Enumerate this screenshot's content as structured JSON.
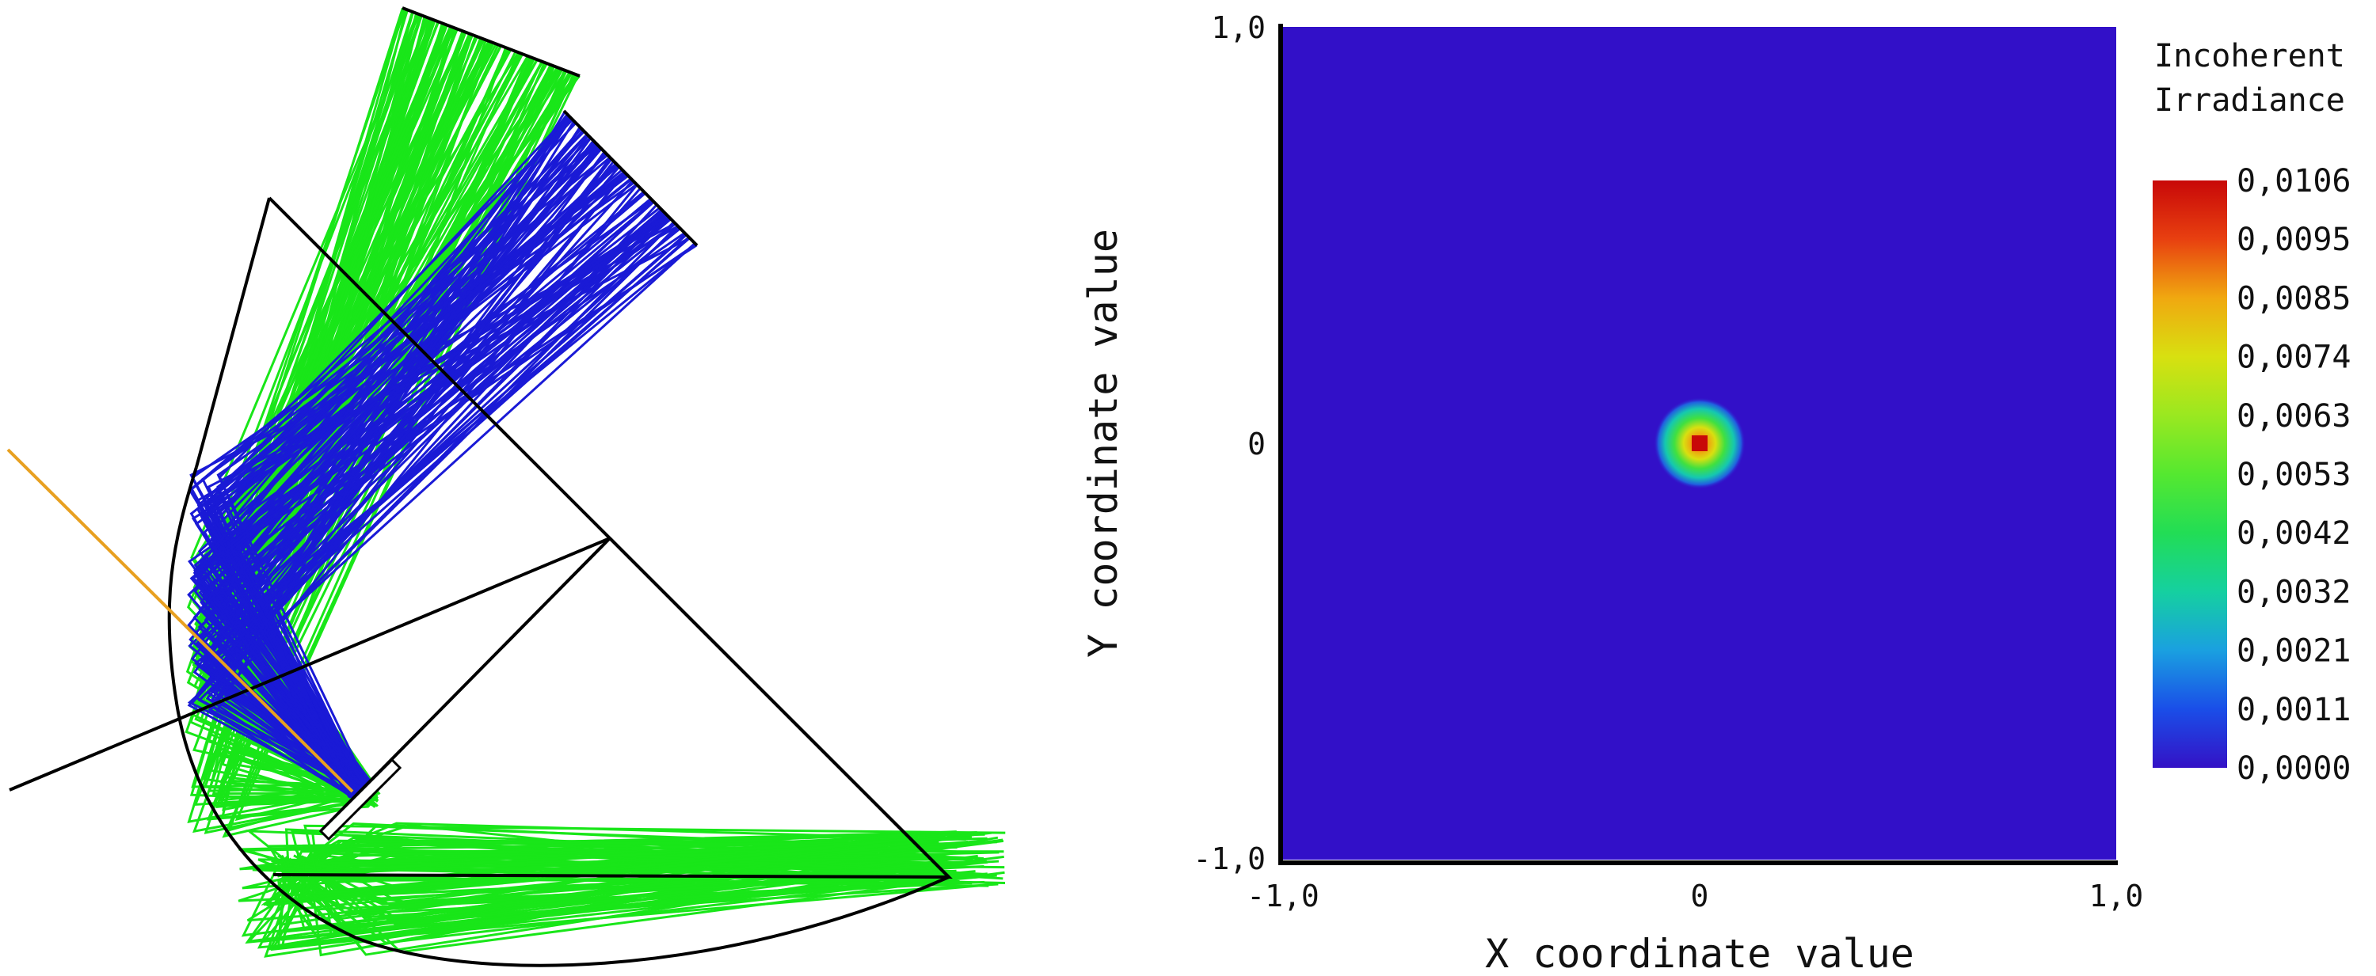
{
  "colors": {
    "ray_green": "#19e619",
    "ray_blue": "#1a1ad6",
    "axis_orange": "#e8a020",
    "outline": "#000000",
    "heatmap_background": "#3210c8"
  },
  "chart_data": {
    "type": "heatmap",
    "xlabel": "X coordinate value",
    "ylabel": "Y coordinate value",
    "xlim": [
      -1.0,
      1.0
    ],
    "ylim": [
      -1.0,
      1.0
    ],
    "x_ticks": [
      "-1,0",
      "0",
      "1,0"
    ],
    "y_ticks": [
      "1,0",
      "0",
      "-1,0"
    ],
    "spot": {
      "x": 0.0,
      "y": 0.0,
      "peak": 0.0106,
      "sigma": 0.055
    },
    "colorbar": {
      "title_lines": [
        "Incoherent",
        "Irradiance"
      ],
      "min": 0.0,
      "max": 0.0106,
      "tick_labels": [
        "0,0106",
        "0,0095",
        "0,0085",
        "0,0074",
        "0,0063",
        "0,0053",
        "0,0042",
        "0,0032",
        "0,0021",
        "0,0011",
        "0,0000"
      ]
    },
    "grid": false
  }
}
